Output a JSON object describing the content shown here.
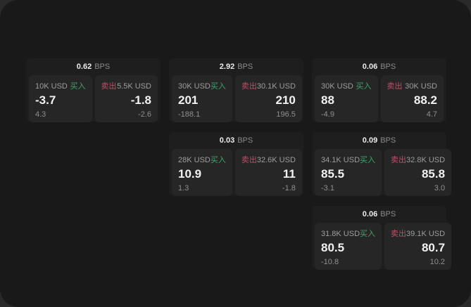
{
  "labels": {
    "bps_unit": "BPS",
    "buy": "买入",
    "sell": "卖出"
  },
  "colors": {
    "window_bg": "#191919",
    "card_bg": "#1e1e1e",
    "panel_bg": "#262626",
    "buy_green": "#3fa36a",
    "sell_red": "#c04f66"
  },
  "cards": [
    {
      "bps": "0.62",
      "buy": {
        "size": "10K USD",
        "price": "-3.7",
        "sub": "4.3"
      },
      "sell": {
        "size": "5.5K USD",
        "price": "-1.8",
        "sub": "-2.6"
      }
    },
    {
      "bps": "2.92",
      "buy": {
        "size": "30K USD",
        "price": "201",
        "sub": "-188.1"
      },
      "sell": {
        "size": "30.1K USD",
        "price": "210",
        "sub": "196.5"
      }
    },
    {
      "bps": "0.06",
      "buy": {
        "size": "30K USD",
        "price": "88",
        "sub": "-4.9"
      },
      "sell": {
        "size": "30K USD",
        "price": "88.2",
        "sub": "4.7"
      }
    },
    {
      "bps": "0.03",
      "buy": {
        "size": "28K USD",
        "price": "10.9",
        "sub": "1.3"
      },
      "sell": {
        "size": "32.6K USD",
        "price": "11",
        "sub": "-1.8"
      }
    },
    {
      "bps": "0.09",
      "buy": {
        "size": "34.1K USD",
        "price": "85.5",
        "sub": "-3.1"
      },
      "sell": {
        "size": "32.8K USD",
        "price": "85.8",
        "sub": "3.0"
      }
    },
    {
      "bps": "0.06",
      "buy": {
        "size": "31.8K USD",
        "price": "80.5",
        "sub": "-10.8"
      },
      "sell": {
        "size": "39.1K USD",
        "price": "80.7",
        "sub": "10.2"
      }
    }
  ]
}
